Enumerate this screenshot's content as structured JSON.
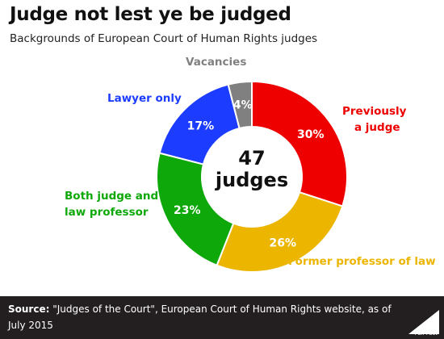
{
  "title": "Judge not lest ye be judged",
  "subtitle": "Backgrounds of European Court of Human Rights judges",
  "center_label": {
    "line1": "47",
    "line2": "judges"
  },
  "chart_data": {
    "type": "pie",
    "donut": true,
    "unit": "%",
    "slices": [
      {
        "label": "Previously a judge",
        "label_lines": [
          "Previously",
          "a judge"
        ],
        "value": 30,
        "color": "#ee0000"
      },
      {
        "label": "Former professor of law",
        "label_lines": [
          "Former professor of law"
        ],
        "value": 26,
        "color": "#ebb500"
      },
      {
        "label": "Both judge and law professor",
        "label_lines": [
          "Both judge and",
          "law professor"
        ],
        "value": 23,
        "color": "#0fa80a"
      },
      {
        "label": "Lawyer only",
        "label_lines": [
          "Lawyer only"
        ],
        "value": 17,
        "color": "#1c3dff"
      },
      {
        "label": "Vacancies",
        "label_lines": [
          "Vacancies"
        ],
        "value": 4,
        "color": "#808080",
        "label_color": "#808080"
      }
    ]
  },
  "footer": {
    "source_label": "Source:",
    "source_text": " \"Judges of the Court\", European Court of Human Rights website, as of July 2015",
    "logo_text": "Full Fact"
  }
}
